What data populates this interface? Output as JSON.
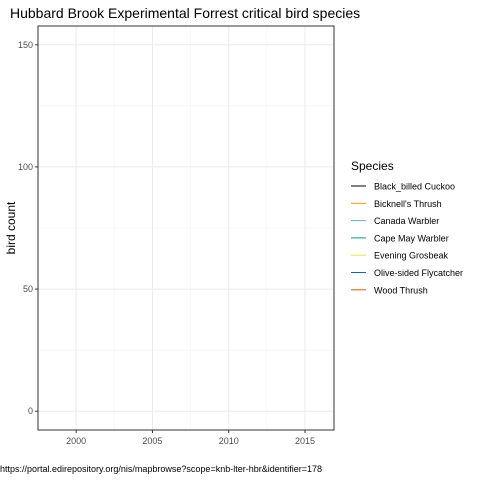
{
  "chart_data": {
    "type": "line",
    "title": "Hubbard Brook Experimental Forrest critical bird species",
    "xlabel": "",
    "ylabel": "bird count",
    "xlim": [
      1997.5,
      2016.9
    ],
    "ylim": [
      -7.7,
      157.7
    ],
    "x_ticks": [
      2000,
      2005,
      2010,
      2015
    ],
    "y_ticks": [
      0,
      50,
      100,
      150
    ],
    "grid": true,
    "legend_title": "Species",
    "legend_position": "right",
    "series": [
      {
        "name": "Black_billed Cuckoo",
        "color": "#000000",
        "values": []
      },
      {
        "name": "Bicknell's Thrush",
        "color": "#E69F00",
        "values": []
      },
      {
        "name": "Canada Warbler",
        "color": "#56B4E9",
        "values": []
      },
      {
        "name": "Cape May Warbler",
        "color": "#009E73",
        "values": []
      },
      {
        "name": "Evening Grosbeak",
        "color": "#F0E442",
        "values": []
      },
      {
        "name": "Olive-sided Flycatcher",
        "color": "#0072B2",
        "values": []
      },
      {
        "name": "Wood Thrush",
        "color": "#D55E00",
        "values": []
      }
    ]
  },
  "caption": "https://portal.edirepository.org/nis/mapbrowse?scope=knb-lter-hbr&identifier=178"
}
